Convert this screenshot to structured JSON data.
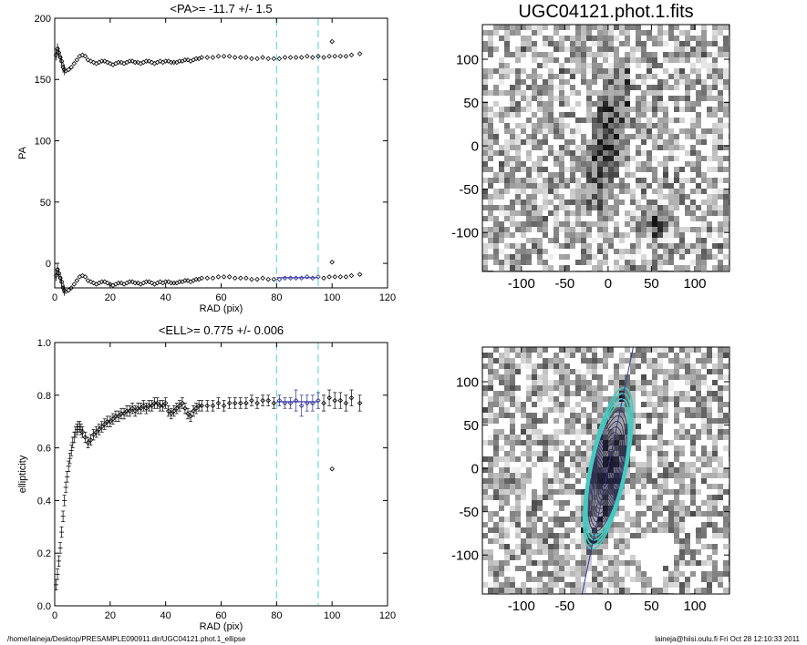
{
  "colors": {
    "axis": "#000000",
    "marker": "#000000",
    "fit_marker": "#2a2a8c",
    "fit_line": "#3434a8",
    "vline": "#66d9e3",
    "contour_inner": "#2b2b5a",
    "contour_outer": "#46c9c1"
  },
  "chart_data": [
    {
      "id": "pa",
      "type": "scatter",
      "title": "<PA>= -11.7 +/-   1.5",
      "xlabel": "RAD (pix)",
      "ylabel": "PA",
      "xlim": [
        0,
        120
      ],
      "ylim": [
        -20,
        200
      ],
      "xticks": [
        "0",
        "20",
        "40",
        "60",
        "80",
        "100",
        "120"
      ],
      "yticks": [
        "0",
        "50",
        "100",
        "150",
        "200"
      ],
      "xtick_values": [
        0,
        20,
        40,
        60,
        80,
        100,
        120
      ],
      "ytick_values": [
        0,
        50,
        100,
        150,
        200
      ],
      "vlines": [
        80,
        95
      ],
      "fit_range": [
        80,
        95
      ],
      "fit_value": -11.7,
      "series": [
        {
          "x": [
            0.5,
            1,
            1.5,
            2,
            2.5,
            3,
            3.5,
            4,
            5,
            6,
            7,
            8,
            9,
            10,
            11,
            12,
            13,
            14,
            15,
            16,
            17,
            18,
            19,
            20,
            21,
            22,
            23,
            24,
            25,
            26,
            27,
            28,
            29,
            30,
            31,
            32,
            33,
            34,
            35,
            36,
            37,
            38,
            39,
            40,
            41,
            42,
            43,
            44,
            45,
            46,
            47,
            48,
            49,
            50,
            51,
            52,
            53,
            55,
            57,
            59,
            61,
            63,
            65,
            67,
            69,
            71,
            73,
            75,
            77,
            79,
            81,
            83,
            85,
            87,
            89,
            91,
            93,
            95,
            97,
            99,
            101,
            103,
            105,
            107,
            110
          ],
          "y": [
            170,
            175,
            172,
            168,
            165,
            160,
            158,
            157,
            158,
            160,
            163,
            166,
            169,
            170,
            169,
            166,
            165,
            164,
            163,
            164,
            165,
            165,
            164,
            163,
            162,
            163,
            164,
            164,
            163,
            164,
            165,
            165,
            164,
            164,
            163,
            164,
            165,
            165,
            164,
            163,
            164,
            165,
            164,
            165,
            165,
            164,
            164,
            164,
            165,
            165,
            166,
            166,
            165,
            166,
            167,
            167,
            168,
            168,
            168,
            169,
            169,
            169,
            168,
            168,
            168,
            167,
            167,
            168,
            167,
            167,
            167,
            168,
            168,
            168,
            168,
            169,
            168,
            169,
            168,
            169,
            169,
            169,
            169,
            170,
            171
          ]
        },
        {
          "x": [
            0.5,
            1,
            1.5,
            2,
            2.5,
            3,
            3.5,
            4,
            5,
            6,
            7,
            8,
            9,
            10,
            11,
            12,
            13,
            14,
            15,
            16,
            17,
            18,
            19,
            20,
            21,
            22,
            23,
            24,
            25,
            26,
            27,
            28,
            29,
            30,
            31,
            32,
            33,
            34,
            35,
            36,
            37,
            38,
            39,
            40,
            41,
            42,
            43,
            44,
            45,
            46,
            47,
            48,
            49,
            50,
            51,
            52,
            53,
            55,
            57,
            59,
            61,
            63,
            65,
            67,
            69,
            71,
            73,
            75,
            77,
            79,
            81,
            83,
            85,
            87,
            89,
            91,
            93,
            95,
            97,
            99,
            101,
            103,
            105,
            107,
            110
          ],
          "y": [
            -10,
            -5,
            -8,
            -12,
            -15,
            -20,
            -22,
            -23,
            -22,
            -20,
            -17,
            -14,
            -11,
            -10,
            -11,
            -14,
            -15,
            -16,
            -17,
            -16,
            -15,
            -15,
            -16,
            -17,
            -18,
            -17,
            -16,
            -16,
            -17,
            -16,
            -15,
            -15,
            -16,
            -16,
            -17,
            -16,
            -15,
            -15,
            -16,
            -17,
            -16,
            -15,
            -16,
            -15,
            -15,
            -16,
            -16,
            -16,
            -15,
            -15,
            -14,
            -14,
            -15,
            -14,
            -13,
            -13,
            -12,
            -12,
            -12,
            -11,
            -11,
            -11,
            -12,
            -12,
            -12,
            -13,
            -13,
            -12,
            -13,
            -13,
            -13,
            -12,
            -12,
            -12,
            -12,
            -11,
            -12,
            -11,
            -12,
            -11,
            -11,
            -11,
            -11,
            -10,
            -9
          ]
        }
      ],
      "outliers": [
        {
          "x": 100,
          "y": 181
        },
        {
          "x": 100,
          "y": 1
        }
      ]
    },
    {
      "id": "ell",
      "type": "scatter",
      "title": "<ELL>= 0.775 +/-  0.006",
      "xlabel": "RAD (pix)",
      "ylabel": "ellipticity",
      "xlim": [
        0,
        120
      ],
      "ylim": [
        0,
        1
      ],
      "xticks": [
        "0",
        "20",
        "40",
        "60",
        "80",
        "100",
        "120"
      ],
      "yticks": [
        "0.0",
        "0.2",
        "0.4",
        "0.6",
        "0.8",
        "1.0"
      ],
      "xtick_values": [
        0,
        20,
        40,
        60,
        80,
        100,
        120
      ],
      "ytick_values": [
        0,
        0.2,
        0.4,
        0.6,
        0.8,
        1.0
      ],
      "vlines": [
        80,
        95
      ],
      "fit_range": [
        80,
        95
      ],
      "fit_value": 0.775,
      "series": [
        {
          "x": [
            0.5,
            1,
            1.5,
            2,
            2.5,
            3,
            3.5,
            4,
            4.5,
            5,
            5.5,
            6,
            6.5,
            7,
            7.5,
            8,
            8.5,
            9,
            9.5,
            10,
            11,
            12,
            13,
            14,
            15,
            16,
            17,
            18,
            19,
            20,
            21,
            22,
            23,
            24,
            25,
            26,
            27,
            28,
            29,
            30,
            31,
            32,
            33,
            34,
            35,
            36,
            37,
            38,
            39,
            40,
            41,
            42,
            43,
            44,
            45,
            46,
            47,
            48,
            49,
            50,
            51,
            52,
            53,
            55,
            57,
            59,
            61,
            63,
            65,
            67,
            69,
            71,
            73,
            75,
            77,
            79,
            81,
            83,
            85,
            87,
            89,
            91,
            93,
            95,
            97,
            99,
            101,
            103,
            105,
            107,
            110
          ],
          "y": [
            0.08,
            0.12,
            0.17,
            0.22,
            0.28,
            0.34,
            0.4,
            0.45,
            0.49,
            0.53,
            0.56,
            0.59,
            0.62,
            0.64,
            0.66,
            0.67,
            0.68,
            0.68,
            0.67,
            0.66,
            0.64,
            0.62,
            0.63,
            0.65,
            0.66,
            0.67,
            0.68,
            0.69,
            0.7,
            0.7,
            0.71,
            0.72,
            0.72,
            0.73,
            0.73,
            0.74,
            0.74,
            0.75,
            0.74,
            0.75,
            0.75,
            0.76,
            0.75,
            0.76,
            0.76,
            0.77,
            0.77,
            0.76,
            0.76,
            0.77,
            0.74,
            0.73,
            0.74,
            0.75,
            0.76,
            0.77,
            0.75,
            0.73,
            0.72,
            0.74,
            0.75,
            0.76,
            0.76,
            0.76,
            0.76,
            0.77,
            0.76,
            0.77,
            0.77,
            0.77,
            0.77,
            0.78,
            0.77,
            0.78,
            0.78,
            0.77,
            0.78,
            0.77,
            0.77,
            0.78,
            0.76,
            0.77,
            0.77,
            0.78,
            0.77,
            0.79,
            0.78,
            0.78,
            0.77,
            0.79,
            0.77
          ],
          "err": [
            0.02,
            0.02,
            0.02,
            0.02,
            0.02,
            0.02,
            0.02,
            0.02,
            0.02,
            0.02,
            0.02,
            0.02,
            0.02,
            0.02,
            0.02,
            0.02,
            0.02,
            0.02,
            0.02,
            0.02,
            0.02,
            0.02,
            0.02,
            0.02,
            0.02,
            0.02,
            0.02,
            0.02,
            0.02,
            0.02,
            0.02,
            0.02,
            0.02,
            0.02,
            0.02,
            0.02,
            0.02,
            0.02,
            0.02,
            0.02,
            0.02,
            0.02,
            0.02,
            0.02,
            0.02,
            0.02,
            0.02,
            0.02,
            0.02,
            0.02,
            0.02,
            0.02,
            0.02,
            0.02,
            0.02,
            0.02,
            0.02,
            0.02,
            0.02,
            0.02,
            0.02,
            0.02,
            0.02,
            0.02,
            0.02,
            0.02,
            0.02,
            0.02,
            0.02,
            0.02,
            0.02,
            0.02,
            0.02,
            0.02,
            0.02,
            0.02,
            0.02,
            0.02,
            0.02,
            0.04,
            0.04,
            0.03,
            0.03,
            0.03,
            0.03,
            0.03,
            0.03,
            0.03,
            0.03,
            0.03,
            0.03
          ]
        }
      ],
      "outliers": [
        {
          "x": 100,
          "y": 0.52
        }
      ]
    },
    {
      "id": "image",
      "type": "heatmap",
      "title": "UGC04121.phot.1.fits",
      "xlim": [
        -145,
        140
      ],
      "ylim": [
        -145,
        140
      ],
      "xticks": [
        "-100",
        "-50",
        "0",
        "50",
        "100"
      ],
      "yticks": [
        "-100",
        "-50",
        "0",
        "50",
        "100"
      ],
      "xtick_values": [
        -100,
        -50,
        0,
        50,
        100
      ],
      "ytick_values": [
        -100,
        -50,
        0,
        50,
        100
      ],
      "galaxy": {
        "center": [
          0,
          10
        ],
        "semi_major": 80,
        "axis_ratio": 0.225,
        "pa_deg": -11.7
      },
      "star": {
        "center": [
          55,
          -90
        ]
      }
    },
    {
      "id": "contours",
      "type": "heatmap",
      "xlim": [
        -145,
        140
      ],
      "ylim": [
        -145,
        140
      ],
      "xticks": [
        "-100",
        "-50",
        "0",
        "50",
        "100"
      ],
      "yticks": [
        "-100",
        "-50",
        "0",
        "50",
        "100"
      ],
      "xtick_values": [
        -100,
        -50,
        0,
        50,
        100
      ],
      "ytick_values": [
        -100,
        -50,
        0,
        50,
        100
      ],
      "galaxy": {
        "center": [
          0,
          0
        ],
        "semi_major": 95,
        "axis_ratio": 0.225,
        "pa_deg": -11.7
      }
    }
  ],
  "footer": {
    "left": "/home/laineja/Desktop/PRESAMPLE090911.dir/UGC04121.phot.1_ellipse",
    "right": "laineja@hiisi.oulu.fi  Fri Oct 28 12:10:33 2011"
  }
}
